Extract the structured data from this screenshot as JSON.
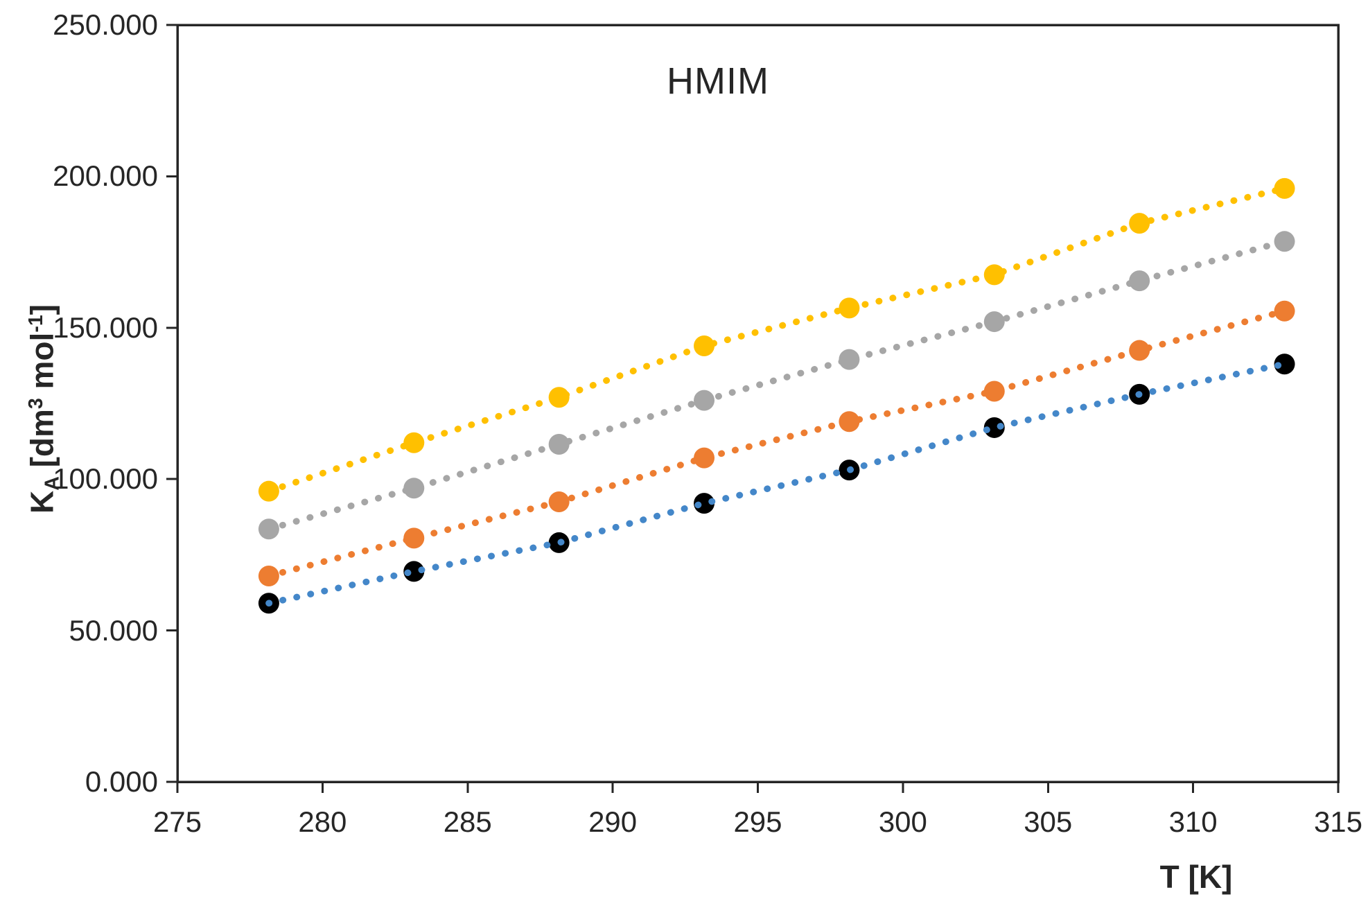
{
  "page": {
    "background": "#ffffff"
  },
  "chart_data": {
    "type": "scatter",
    "title": "HMIM",
    "grid": false,
    "legend": "none",
    "axis_color": "#262626",
    "text_color": "#262626",
    "x_axis": {
      "title": "T [K]",
      "min": 275,
      "max": 315,
      "tick_values": [
        275,
        280,
        285,
        290,
        295,
        300,
        305,
        310,
        315
      ],
      "tick_labels": [
        "275",
        "280",
        "285",
        "290",
        "295",
        "300",
        "305",
        "310",
        "315"
      ]
    },
    "y_axis": {
      "title_plain": "KA [dm3 mol-1]",
      "title_segments": [
        {
          "text": "K",
          "style": "normal"
        },
        {
          "text": "A",
          "style": "sub"
        },
        {
          "text": " [dm",
          "style": "normal"
        },
        {
          "text": "3",
          "style": "sup"
        },
        {
          "text": " mol",
          "style": "normal"
        },
        {
          "text": "-1",
          "style": "sup"
        },
        {
          "text": "]",
          "style": "normal"
        }
      ],
      "min": 0,
      "max": 250000,
      "tick_values": [
        0,
        50000,
        100000,
        150000,
        200000,
        250000
      ],
      "tick_labels": [
        "0.000",
        "50.000",
        "100.000",
        "150.000",
        "200.000",
        "250.000"
      ]
    },
    "x": [
      278.15,
      283.15,
      288.15,
      293.15,
      298.15,
      303.15,
      308.15,
      313.15
    ],
    "series": [
      {
        "name": "gold-series",
        "marker_color": "#FFC000",
        "line_color": "#FFC000",
        "line_style": "dotted",
        "values": [
          96000,
          112000,
          127000,
          144000,
          156500,
          167500,
          184500,
          196000
        ]
      },
      {
        "name": "gray-series",
        "marker_color": "#A6A6A6",
        "line_color": "#A6A6A6",
        "line_style": "dotted",
        "values": [
          83500,
          97000,
          111500,
          126000,
          139500,
          152000,
          165500,
          178500
        ]
      },
      {
        "name": "orange-series",
        "marker_color": "#ED7D31",
        "line_color": "#ED7D31",
        "line_style": "dotted",
        "values": [
          68000,
          80500,
          92500,
          107000,
          119000,
          129000,
          142500,
          155500
        ]
      },
      {
        "name": "black-series",
        "marker_color": "#000000",
        "line_color": "#4487C9",
        "line_style": "dotted",
        "values": [
          59000,
          69500,
          79000,
          92000,
          103000,
          117000,
          128000,
          138000
        ]
      }
    ]
  }
}
